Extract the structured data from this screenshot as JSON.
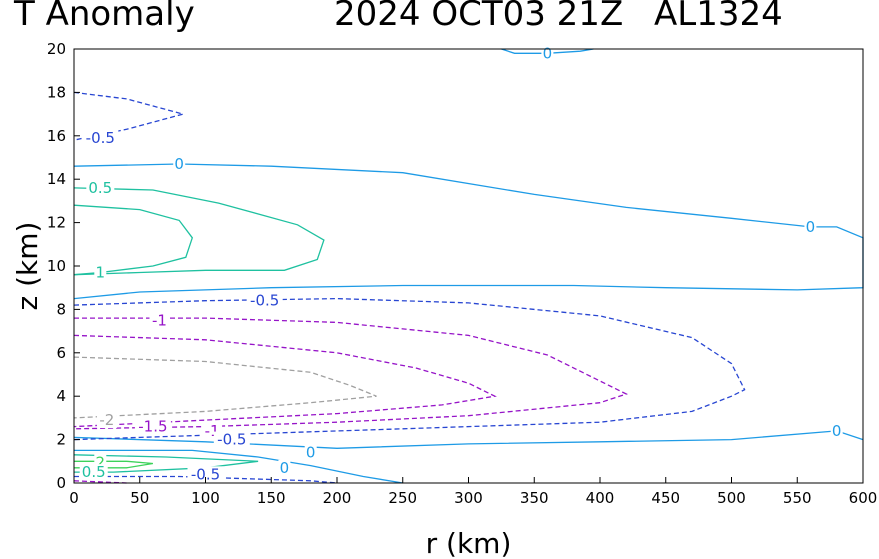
{
  "chart_data": {
    "type": "contour",
    "title": "T Anomaly",
    "title_date": "2024 OCT03 21Z",
    "title_storm": "AL1324",
    "xlabel": "r (km)",
    "ylabel": "z (km)",
    "xlim": [
      0,
      600
    ],
    "ylim": [
      0,
      20
    ],
    "xticks": [
      0,
      50,
      100,
      150,
      200,
      250,
      300,
      350,
      400,
      450,
      500,
      550,
      600
    ],
    "yticks": [
      0,
      2,
      4,
      6,
      8,
      10,
      12,
      14,
      16,
      18,
      20
    ],
    "grid": false,
    "contours": [
      {
        "level": 0,
        "label": "0",
        "color": "#1e9be6",
        "dashed": false,
        "points": [
          [
            0,
            14.6
          ],
          [
            80,
            14.7
          ],
          [
            150,
            14.6
          ],
          [
            250,
            14.3
          ],
          [
            350,
            13.3
          ],
          [
            420,
            12.7
          ],
          [
            500,
            12.2
          ],
          [
            560,
            11.8
          ],
          [
            580,
            11.8
          ],
          [
            600,
            11.3
          ],
          [
            600,
            9.0
          ],
          [
            550,
            8.9
          ],
          [
            450,
            9.0
          ],
          [
            380,
            9.1
          ],
          [
            250,
            9.1
          ],
          [
            150,
            9.0
          ],
          [
            50,
            8.8
          ],
          [
            0,
            8.5
          ]
        ]
      },
      {
        "level": 0,
        "label": "0",
        "color": "#1e9be6",
        "dashed": false,
        "points": [
          [
            325,
            20.0
          ],
          [
            335,
            19.8
          ],
          [
            360,
            19.8
          ],
          [
            385,
            19.9
          ],
          [
            395,
            20.0
          ]
        ]
      },
      {
        "level": 0,
        "label": "0",
        "color": "#1e9be6",
        "dashed": false,
        "points": [
          [
            0,
            2.1
          ],
          [
            100,
            1.9
          ],
          [
            200,
            1.6
          ],
          [
            300,
            1.8
          ],
          [
            400,
            1.9
          ],
          [
            500,
            2.0
          ],
          [
            580,
            2.4
          ],
          [
            600,
            2.0
          ]
        ]
      },
      {
        "level": 0,
        "label": "0",
        "color": "#1e9be6",
        "dashed": false,
        "points": [
          [
            0,
            1.5
          ],
          [
            90,
            1.5
          ],
          [
            140,
            1.2
          ],
          [
            180,
            0.8
          ],
          [
            220,
            0.3
          ],
          [
            250,
            0.0
          ]
        ]
      },
      {
        "level": 0.5,
        "label": "0.5",
        "color": "#1fc1a0",
        "dashed": false,
        "points": [
          [
            0,
            13.6
          ],
          [
            60,
            13.5
          ],
          [
            110,
            12.9
          ],
          [
            170,
            11.9
          ],
          [
            190,
            11.2
          ],
          [
            185,
            10.3
          ],
          [
            160,
            9.8
          ],
          [
            100,
            9.8
          ],
          [
            50,
            9.7
          ],
          [
            0,
            9.6
          ]
        ]
      },
      {
        "level": 1,
        "label": "1",
        "color": "#1fc1a0",
        "dashed": false,
        "points": [
          [
            0,
            12.8
          ],
          [
            50,
            12.6
          ],
          [
            80,
            12.1
          ],
          [
            90,
            11.3
          ],
          [
            85,
            10.4
          ],
          [
            60,
            10.0
          ],
          [
            20,
            9.7
          ],
          [
            0,
            9.6
          ]
        ]
      },
      {
        "level": 0.5,
        "label": "0.5",
        "color": "#1fc1a0",
        "dashed": false,
        "points": [
          [
            0,
            1.3
          ],
          [
            70,
            1.2
          ],
          [
            140,
            1.0
          ],
          [
            100,
            0.7
          ],
          [
            30,
            0.5
          ],
          [
            0,
            0.5
          ]
        ]
      },
      {
        "level": 2,
        "label": "2",
        "color": "#3cd25a",
        "dashed": false,
        "points": [
          [
            0,
            1.0
          ],
          [
            40,
            1.0
          ],
          [
            60,
            0.9
          ],
          [
            40,
            0.7
          ],
          [
            0,
            0.7
          ]
        ]
      },
      {
        "level": -0.5,
        "label": "-0.5",
        "color": "#2846d2",
        "dashed": true,
        "points": [
          [
            0,
            18.0
          ],
          [
            40,
            17.7
          ],
          [
            83,
            17.0
          ],
          [
            40,
            16.3
          ],
          [
            0,
            15.8
          ]
        ]
      },
      {
        "level": -0.5,
        "label": "-0.5",
        "color": "#2846d2",
        "dashed": true,
        "points": [
          [
            0,
            8.2
          ],
          [
            100,
            8.4
          ],
          [
            200,
            8.5
          ],
          [
            300,
            8.3
          ],
          [
            400,
            7.7
          ],
          [
            470,
            6.7
          ],
          [
            500,
            5.5
          ],
          [
            510,
            4.3
          ],
          [
            500,
            4.0
          ],
          [
            470,
            3.3
          ],
          [
            400,
            2.8
          ],
          [
            250,
            2.5
          ],
          [
            150,
            2.3
          ],
          [
            50,
            2.1
          ],
          [
            0,
            2.0
          ]
        ]
      },
      {
        "level": -0.5,
        "label": "-0.5",
        "color": "#2846d2",
        "dashed": true,
        "points": [
          [
            0,
            0.3
          ],
          [
            80,
            0.3
          ],
          [
            180,
            0.1
          ],
          [
            200,
            0.0
          ]
        ]
      },
      {
        "level": -1,
        "label": "-1",
        "color": "#9614c8",
        "dashed": true,
        "points": [
          [
            0,
            7.6
          ],
          [
            100,
            7.6
          ],
          [
            200,
            7.4
          ],
          [
            300,
            6.8
          ],
          [
            360,
            5.9
          ],
          [
            400,
            4.7
          ],
          [
            420,
            4.1
          ],
          [
            400,
            3.7
          ],
          [
            300,
            3.1
          ],
          [
            200,
            2.8
          ],
          [
            100,
            2.6
          ],
          [
            0,
            2.5
          ]
        ]
      },
      {
        "level": -1.5,
        "label": "-1.5",
        "color": "#9614c8",
        "dashed": true,
        "points": [
          [
            0,
            6.8
          ],
          [
            100,
            6.6
          ],
          [
            200,
            6.0
          ],
          [
            260,
            5.3
          ],
          [
            300,
            4.6
          ],
          [
            320,
            4.0
          ],
          [
            280,
            3.6
          ],
          [
            200,
            3.2
          ],
          [
            100,
            2.9
          ],
          [
            0,
            2.6
          ]
        ]
      },
      {
        "level": -2,
        "label": "-2",
        "color": "#a0a0a0",
        "dashed": true,
        "points": [
          [
            0,
            5.8
          ],
          [
            100,
            5.6
          ],
          [
            180,
            5.1
          ],
          [
            210,
            4.5
          ],
          [
            230,
            4.0
          ],
          [
            180,
            3.7
          ],
          [
            100,
            3.3
          ],
          [
            0,
            3.0
          ]
        ]
      },
      {
        "level": -2.5,
        "label": "",
        "color": "#9614c8",
        "dashed": true,
        "points": [
          [
            0,
            0.1
          ],
          [
            40,
            0.0
          ]
        ]
      }
    ],
    "contour_labels": [
      {
        "text": "0",
        "x": 360,
        "y": 19.8,
        "color": "#1e9be6"
      },
      {
        "text": "0",
        "x": 80,
        "y": 14.7,
        "color": "#1e9be6"
      },
      {
        "text": "0",
        "x": 560,
        "y": 11.8,
        "color": "#1e9be6"
      },
      {
        "text": "0",
        "x": 180,
        "y": 1.4,
        "color": "#1e9be6"
      },
      {
        "text": "0",
        "x": 580,
        "y": 2.4,
        "color": "#1e9be6"
      },
      {
        "text": "0",
        "x": 160,
        "y": 0.7,
        "color": "#1e9be6"
      },
      {
        "text": "-0.5",
        "x": 20,
        "y": 15.9,
        "color": "#2846d2"
      },
      {
        "text": "0.5",
        "x": 20,
        "y": 13.6,
        "color": "#1fc1a0"
      },
      {
        "text": "1",
        "x": 20,
        "y": 9.7,
        "color": "#1fc1a0"
      },
      {
        "text": "-0.5",
        "x": 145,
        "y": 8.4,
        "color": "#2846d2"
      },
      {
        "text": "-1",
        "x": 65,
        "y": 7.5,
        "color": "#9614c8"
      },
      {
        "text": "-2",
        "x": 25,
        "y": 2.9,
        "color": "#a0a0a0"
      },
      {
        "text": "-1.5",
        "x": 60,
        "y": 2.6,
        "color": "#9614c8"
      },
      {
        "text": "-1",
        "x": 105,
        "y": 2.4,
        "color": "#9614c8"
      },
      {
        "text": "-0.5",
        "x": 120,
        "y": 2.0,
        "color": "#2846d2"
      },
      {
        "text": "2",
        "x": 20,
        "y": 0.95,
        "color": "#3cd25a"
      },
      {
        "text": "0.5",
        "x": 15,
        "y": 0.5,
        "color": "#1fc1a0"
      },
      {
        "text": "-0.5",
        "x": 100,
        "y": 0.4,
        "color": "#2846d2"
      }
    ]
  }
}
